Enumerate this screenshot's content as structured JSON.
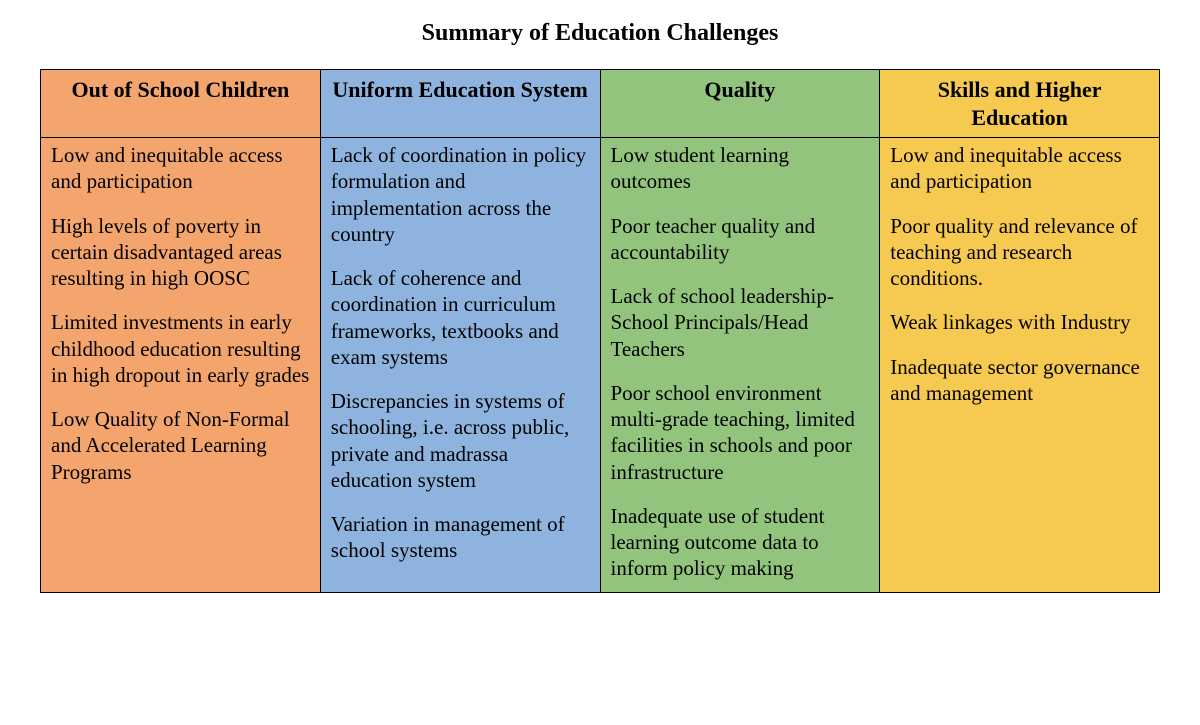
{
  "title": "Summary of Education Challenges",
  "table": {
    "type": "table",
    "font_family": "Times New Roman",
    "title_fontsize": 24,
    "header_fontsize": 22,
    "body_fontsize": 21,
    "border_color": "#000000",
    "text_color": "#000000",
    "background_color": "#ffffff",
    "columns": [
      {
        "header": "Out of School Children",
        "header_bg": "#f4a46d",
        "body_bg": "#f4a46d",
        "items": [
          "Low and inequitable access and participation",
          "High levels of poverty in certain disadvantaged areas resulting in high OOSC",
          "Limited investments in early childhood education resulting in high dropout in early grades",
          "Low Quality of Non-Formal and Accelerated Learning Programs"
        ]
      },
      {
        "header": "Uniform Education System",
        "header_bg": "#8eb3de",
        "body_bg": "#8eb3de",
        "items": [
          "Lack of coordination in policy formulation and implementation across the country",
          "Lack of coherence and coordination in curriculum frameworks, textbooks and exam systems",
          "Discrepancies in systems of schooling, i.e. across public, private and madrassa education system",
          "Variation in management of school systems"
        ]
      },
      {
        "header": "Quality",
        "header_bg": "#93c47d",
        "body_bg": "#93c47d",
        "items": [
          "Low student learning outcomes",
          "Poor teacher quality and accountability",
          "Lack of school leadership- School Principals/Head Teachers",
          "Poor school environment multi-grade teaching, limited facilities in schools and poor infrastructure",
          "Inadequate use of student learning outcome data to inform policy making"
        ]
      },
      {
        "header": "Skills and Higher Education",
        "header_bg": "#f6c950",
        "body_bg": "#f6c950",
        "items": [
          "Low and inequitable access and participation",
          "Poor quality and relevance of teaching and research conditions.",
          "Weak linkages with Industry",
          "Inadequate sector governance and management"
        ]
      }
    ]
  }
}
